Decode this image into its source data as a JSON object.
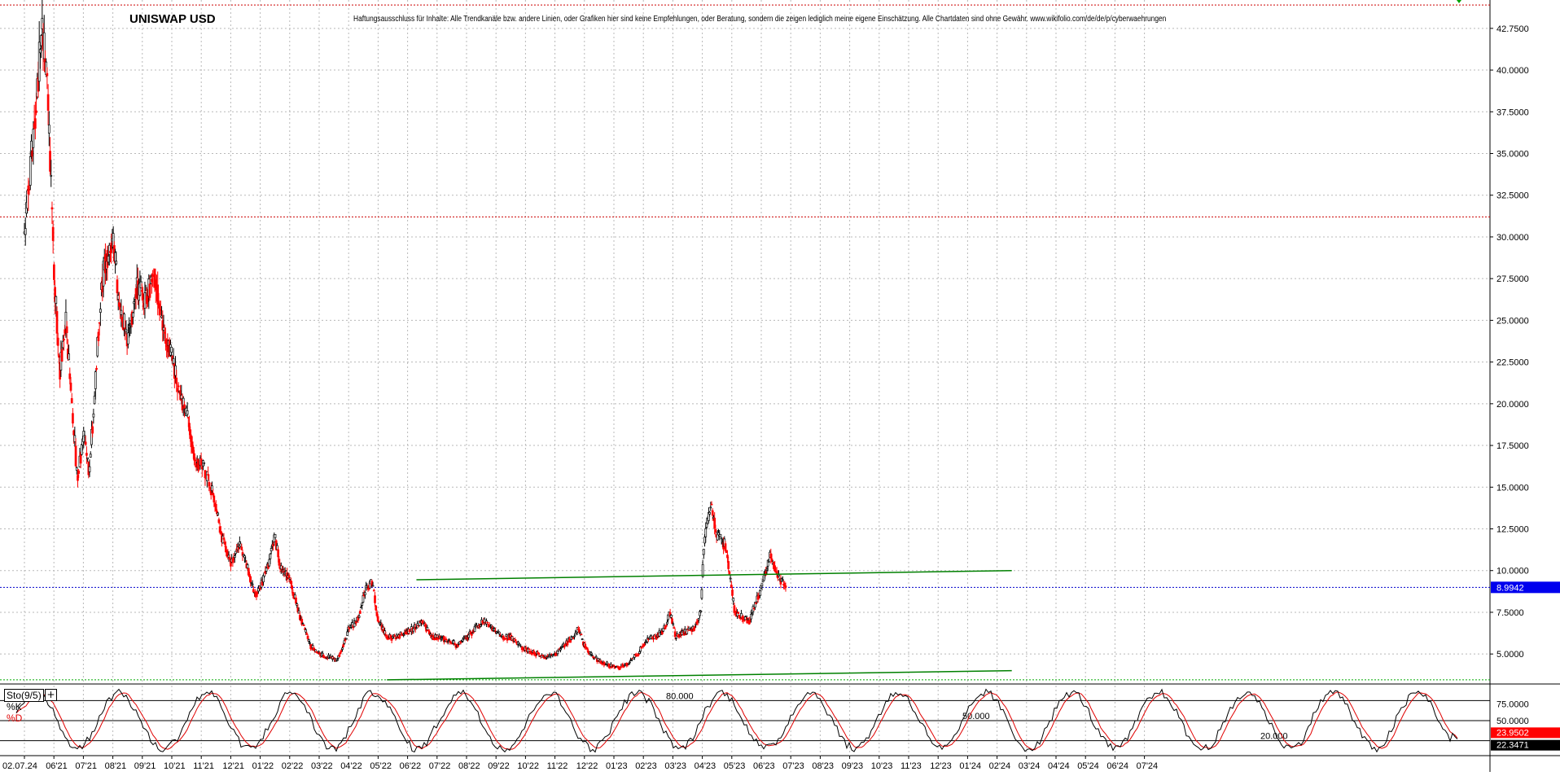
{
  "chart_data": [
    {
      "type": "candlestick",
      "title": "UNISWAP USD",
      "disclaimer": "Haftungsausschluss für Inhalte: Alle Trendkanäle bzw. andere Linien, oder Grafiken hier sind keine Empfehlungen, oder Beratung, sondern die zeigen lediglich meine eigene Einschätzung. Alle Chartdaten sind ohne Gewähr. www.wikifolio.com/de/de/p/cyberwaehrungen",
      "x_tick_labels": [
        "02.07.24",
        "06'21",
        "07'21",
        "08'21",
        "09'21",
        "10'21",
        "11'21",
        "12'21",
        "01'22",
        "02'22",
        "03'22",
        "04'22",
        "05'22",
        "06'22",
        "07'22",
        "08'22",
        "09'22",
        "10'22",
        "11'22",
        "12'22",
        "01'23",
        "02'23",
        "03'23",
        "04'23",
        "05'23",
        "06'23",
        "07'23",
        "08'23",
        "09'23",
        "10'23",
        "11'23",
        "12'23",
        "01'24",
        "02'24",
        "03'24",
        "04'24",
        "05'24",
        "06'24",
        "07'24"
      ],
      "y_tick_labels": [
        "42.7500",
        "40.0000",
        "37.5000",
        "35.0000",
        "32.5000",
        "30.0000",
        "27.5000",
        "25.0000",
        "22.5000",
        "20.0000",
        "17.5000",
        "15.0000",
        "12.5000",
        "10.0000",
        "7.5000",
        "5.0000"
      ],
      "y_ticks": [
        42.5,
        40,
        37.5,
        35,
        32.5,
        30,
        27.5,
        25,
        22.5,
        20,
        17.5,
        15,
        12.5,
        10,
        7.5,
        5
      ],
      "ylim": [
        3.3,
        44.2
      ],
      "x_range_months": [
        "2021-05",
        "2024-07"
      ],
      "grid": true,
      "last_price_label": "8.9942",
      "last_price": 8.9942,
      "horizontal_lines": [
        {
          "value": 43.9,
          "style": "dotted",
          "color": "#cc0000"
        },
        {
          "value": 31.2,
          "style": "dotted",
          "color": "#cc0000"
        },
        {
          "value": 8.9942,
          "style": "dotted",
          "color": "#0000cc"
        },
        {
          "value": 3.45,
          "style": "dotted",
          "color": "#00aa00"
        }
      ],
      "trendlines": [
        {
          "color": "#008000",
          "from": [
            "07'22",
            9.45
          ],
          "to": [
            "02'24",
            10.0
          ]
        },
        {
          "color": "#008000",
          "from": [
            "06'22",
            3.45
          ],
          "to": [
            "02'24",
            4.0
          ]
        }
      ],
      "price_path": [
        [
          0,
          30
        ],
        [
          0.15,
          33
        ],
        [
          0.3,
          36
        ],
        [
          0.45,
          39
        ],
        [
          0.6,
          43
        ],
        [
          0.8,
          38
        ],
        [
          1,
          28
        ],
        [
          1.2,
          22
        ],
        [
          1.4,
          25
        ],
        [
          1.6,
          20
        ],
        [
          1.8,
          15.5
        ],
        [
          2,
          18
        ],
        [
          2.2,
          16
        ],
        [
          2.4,
          21
        ],
        [
          2.6,
          27
        ],
        [
          2.8,
          29
        ],
        [
          3,
          30
        ],
        [
          3.2,
          26
        ],
        [
          3.5,
          24
        ],
        [
          3.8,
          27
        ],
        [
          4.1,
          26
        ],
        [
          4.4,
          28
        ],
        [
          4.6,
          26
        ],
        [
          4.8,
          24
        ],
        [
          5,
          23
        ],
        [
          5.2,
          21
        ],
        [
          5.4,
          20
        ],
        [
          5.6,
          18.5
        ],
        [
          5.8,
          16.5
        ],
        [
          6,
          16.5
        ],
        [
          6.2,
          15.5
        ],
        [
          6.5,
          14
        ],
        [
          6.7,
          12
        ],
        [
          7,
          10.5
        ],
        [
          7.3,
          11.5
        ],
        [
          7.6,
          10
        ],
        [
          7.8,
          8.5
        ],
        [
          8,
          9
        ],
        [
          8.3,
          10.5
        ],
        [
          8.5,
          12
        ],
        [
          8.7,
          10
        ],
        [
          9,
          9.5
        ],
        [
          9.3,
          7.5
        ],
        [
          9.5,
          6.5
        ],
        [
          9.7,
          5.5
        ],
        [
          10,
          5
        ],
        [
          10.3,
          4.8
        ],
        [
          10.6,
          4.6
        ],
        [
          10.8,
          5.5
        ],
        [
          11,
          6.5
        ],
        [
          11.3,
          7
        ],
        [
          11.6,
          9
        ],
        [
          11.8,
          9.3
        ],
        [
          12,
          7
        ],
        [
          12.3,
          6
        ],
        [
          12.6,
          6
        ],
        [
          12.9,
          6.3
        ],
        [
          13.2,
          6.5
        ],
        [
          13.5,
          7
        ],
        [
          13.8,
          6
        ],
        [
          14.1,
          6
        ],
        [
          14.4,
          5.8
        ],
        [
          14.7,
          5.5
        ],
        [
          15,
          6
        ],
        [
          15.3,
          6.5
        ],
        [
          15.6,
          7
        ],
        [
          15.9,
          6.5
        ],
        [
          16.2,
          6
        ],
        [
          16.5,
          6
        ],
        [
          16.8,
          5.5
        ],
        [
          17.1,
          5.2
        ],
        [
          17.4,
          5
        ],
        [
          17.7,
          4.8
        ],
        [
          18,
          5
        ],
        [
          18.3,
          5.5
        ],
        [
          18.6,
          6
        ],
        [
          18.8,
          6.5
        ],
        [
          19,
          5.5
        ],
        [
          19.3,
          4.8
        ],
        [
          19.6,
          4.5
        ],
        [
          19.9,
          4.3
        ],
        [
          20.2,
          4.2
        ],
        [
          20.5,
          4.5
        ],
        [
          20.8,
          5
        ],
        [
          21.1,
          5.8
        ],
        [
          21.4,
          6
        ],
        [
          21.7,
          6.5
        ],
        [
          21.9,
          7.5
        ],
        [
          22.1,
          6
        ],
        [
          22.4,
          6.3
        ],
        [
          22.7,
          6.5
        ],
        [
          22.95,
          7.5
        ],
        [
          23.05,
          11.5
        ],
        [
          23.3,
          14
        ],
        [
          23.5,
          12
        ],
        [
          23.8,
          11.5
        ],
        [
          24.1,
          7.5
        ],
        [
          24.3,
          7.3
        ],
        [
          24.6,
          7
        ],
        [
          24.8,
          8
        ],
        [
          25,
          9
        ],
        [
          25.3,
          11
        ],
        [
          25.6,
          9.5
        ],
        [
          25.85,
          9
        ]
      ]
    },
    {
      "type": "line",
      "indicator_label": "Sto(9/5)",
      "legend": [
        "%K",
        "%D"
      ],
      "colors": [
        "#000000",
        "#e00000"
      ],
      "levels": [
        {
          "value": 80,
          "label": "80.000"
        },
        {
          "value": 50,
          "label": "50.000"
        },
        {
          "value": 20,
          "label": "20.000"
        }
      ],
      "y_tick_labels": [
        "75.0000",
        "50.0000"
      ],
      "last_values": {
        "%D": "23.9502",
        "%K": "22.3471"
      },
      "ylim": [
        0,
        100
      ]
    }
  ]
}
